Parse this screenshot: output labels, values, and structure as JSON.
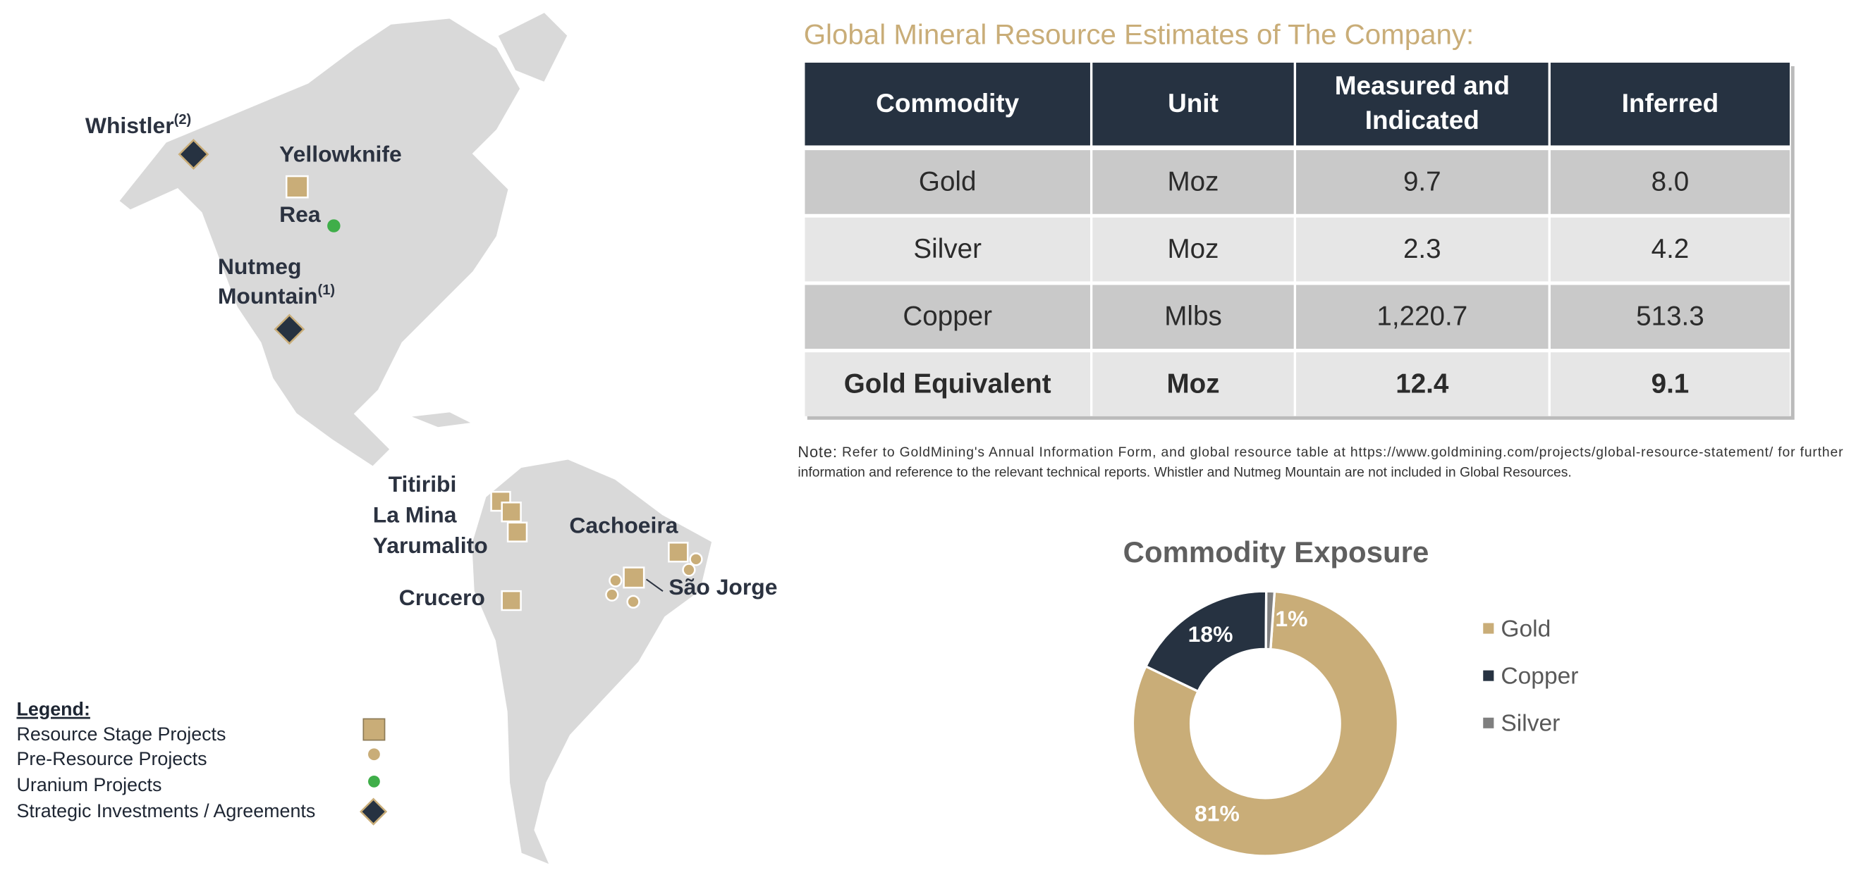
{
  "map": {
    "labels": [
      {
        "name": "Whistler",
        "note": "(2)"
      },
      {
        "name": "Yellowknife"
      },
      {
        "name": "Rea"
      },
      {
        "name": "Nutmeg"
      },
      {
        "name": "Mountain",
        "note": "(1)"
      },
      {
        "name": "Titiribi"
      },
      {
        "name": "La Mina"
      },
      {
        "name": "Yarumalito"
      },
      {
        "name": "Cachoeira"
      },
      {
        "name": "São Jorge"
      },
      {
        "name": "Crucero"
      }
    ],
    "legend": {
      "title": "Legend:",
      "items": [
        "Resource Stage Projects",
        "Pre-Resource Projects",
        "Uranium Projects",
        "Strategic Investments / Agreements"
      ]
    }
  },
  "table": {
    "title": "Global Mineral Resource Estimates of The Company:",
    "header": [
      "Commodity",
      "Unit",
      "Measured and Indicated",
      "Inferred"
    ],
    "rows": [
      [
        "Gold",
        "Moz",
        "9.7",
        "8.0"
      ],
      [
        "Silver",
        "Moz",
        "2.3",
        "4.2"
      ],
      [
        "Copper",
        "Mlbs",
        "1,220.7",
        "513.3"
      ],
      [
        "Gold Equivalent",
        "Moz",
        "12.4",
        "9.1"
      ]
    ]
  },
  "note": {
    "label": "Note:",
    "lines": [
      "Refer to GoldMining's Annual Information Form, and global resource table at https://www.goldmining.com/projects/global-resource-statement/ for further",
      "information and reference to the relevant technical reports. Whistler and Nutmeg Mountain are not included in Global Resources."
    ]
  },
  "chart_data": {
    "type": "donut",
    "title": "Commodity Exposure",
    "categories": [
      "Gold",
      "Copper",
      "Silver"
    ],
    "values": [
      81,
      18,
      1
    ],
    "value_labels": [
      "81%",
      "18%",
      "1%"
    ],
    "colors": [
      "#c9ad78",
      "#263241",
      "#7f7f7f"
    ]
  }
}
